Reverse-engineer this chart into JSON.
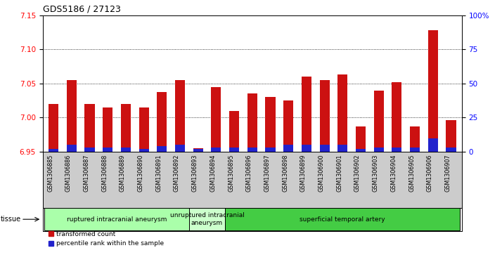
{
  "title": "GDS5186 / 27123",
  "samples": [
    "GSM1306885",
    "GSM1306886",
    "GSM1306887",
    "GSM1306888",
    "GSM1306889",
    "GSM1306890",
    "GSM1306891",
    "GSM1306892",
    "GSM1306893",
    "GSM1306894",
    "GSM1306895",
    "GSM1306896",
    "GSM1306897",
    "GSM1306898",
    "GSM1306899",
    "GSM1306900",
    "GSM1306901",
    "GSM1306902",
    "GSM1306903",
    "GSM1306904",
    "GSM1306905",
    "GSM1306906",
    "GSM1306907"
  ],
  "red_values": [
    7.02,
    7.055,
    7.02,
    7.015,
    7.02,
    7.015,
    7.038,
    7.055,
    6.955,
    7.045,
    7.01,
    7.035,
    7.03,
    7.025,
    7.06,
    7.055,
    7.063,
    6.987,
    7.04,
    7.052,
    6.987,
    7.128,
    6.996
  ],
  "blue_values": [
    2.0,
    5.0,
    3.0,
    3.0,
    3.0,
    2.0,
    4.0,
    5.0,
    2.0,
    3.0,
    3.0,
    3.0,
    3.0,
    5.0,
    5.0,
    5.0,
    5.0,
    2.0,
    3.0,
    3.0,
    3.0,
    10.0,
    3.0
  ],
  "ylim_left": [
    6.95,
    7.15
  ],
  "ylim_right": [
    0,
    100
  ],
  "yticks_left": [
    6.95,
    7.0,
    7.05,
    7.1,
    7.15
  ],
  "yticks_right": [
    0,
    25,
    50,
    75,
    100
  ],
  "ytick_labels_right": [
    "0",
    "25",
    "50",
    "75",
    "100%"
  ],
  "bar_bottom": 6.95,
  "red_color": "#cc1111",
  "blue_color": "#2222cc",
  "groups": [
    {
      "label": "ruptured intracranial aneurysm",
      "start": 0,
      "end": 8,
      "color": "#aaffaa"
    },
    {
      "label": "unruptured intracranial\naneurysm",
      "start": 8,
      "end": 10,
      "color": "#ccffcc"
    },
    {
      "label": "superficial temporal artery",
      "start": 10,
      "end": 23,
      "color": "#44cc44"
    }
  ],
  "tissue_label": "tissue",
  "legend_red": "transformed count",
  "legend_blue": "percentile rank within the sample",
  "bg_color": "#cccccc",
  "plot_bg": "#ffffff",
  "bar_width": 0.55
}
